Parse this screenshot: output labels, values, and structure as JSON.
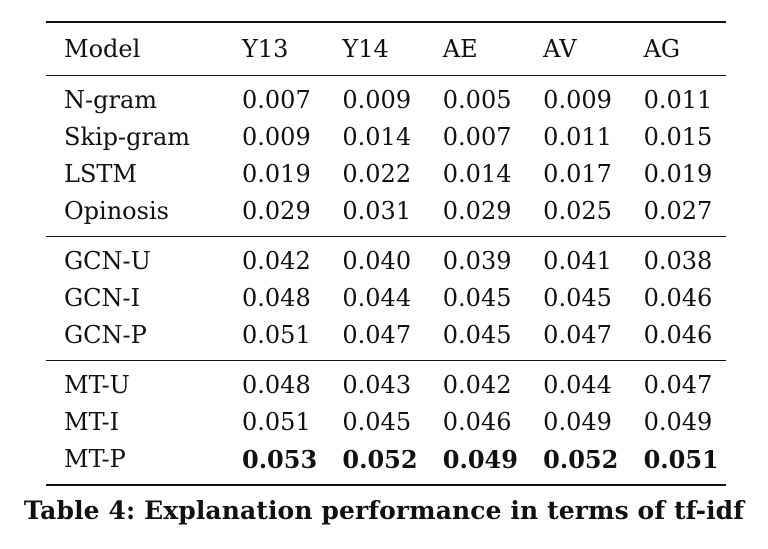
{
  "table": {
    "headers": [
      "Model",
      "Y13",
      "Y14",
      "AE",
      "AV",
      "AG"
    ],
    "groups": [
      {
        "rows": [
          {
            "cells": [
              "N-gram",
              "0.007",
              "0.009",
              "0.005",
              "0.009",
              "0.011"
            ]
          },
          {
            "cells": [
              "Skip-gram",
              "0.009",
              "0.014",
              "0.007",
              "0.011",
              "0.015"
            ]
          },
          {
            "cells": [
              "LSTM",
              "0.019",
              "0.022",
              "0.014",
              "0.017",
              "0.019"
            ]
          },
          {
            "cells": [
              "Opinosis",
              "0.029",
              "0.031",
              "0.029",
              "0.025",
              "0.027"
            ]
          }
        ]
      },
      {
        "rows": [
          {
            "cells": [
              "GCN-U",
              "0.042",
              "0.040",
              "0.039",
              "0.041",
              "0.038"
            ]
          },
          {
            "cells": [
              "GCN-I",
              "0.048",
              "0.044",
              "0.045",
              "0.045",
              "0.046"
            ]
          },
          {
            "cells": [
              "GCN-P",
              "0.051",
              "0.047",
              "0.045",
              "0.047",
              "0.046"
            ]
          }
        ]
      },
      {
        "rows": [
          {
            "cells": [
              "MT-U",
              "0.048",
              "0.043",
              "0.042",
              "0.044",
              "0.047"
            ]
          },
          {
            "cells": [
              "MT-I",
              "0.051",
              "0.045",
              "0.046",
              "0.049",
              "0.049"
            ]
          },
          {
            "cells": [
              "MT-P",
              "0.053",
              "0.052",
              "0.049",
              "0.052",
              "0.051"
            ],
            "bold": [
              false,
              true,
              true,
              true,
              true,
              true
            ]
          }
        ]
      }
    ]
  },
  "caption": "Table 4: Explanation performance in terms of tf-idf"
}
